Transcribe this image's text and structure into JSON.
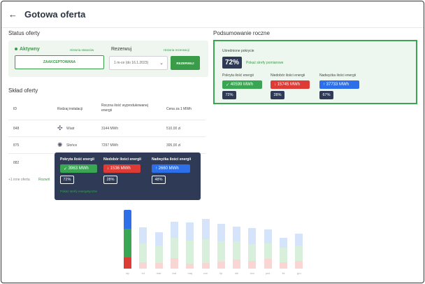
{
  "header": {
    "back_icon": "←",
    "title": "Gotowa oferta"
  },
  "status": {
    "section_title": "Status oferty",
    "active_label": "Aktywny",
    "history_status_link": "Historia statusów",
    "approved_button": "ZAAKCEPTOWANA",
    "reserve_label": "Rezerwuj",
    "history_reserve_link": "Historia rezerwacji",
    "reserve_select_value": "1 m-ce (do 16.1.2023)",
    "reserve_button": "REZERWUJ"
  },
  "composition": {
    "section_title": "Skład oferty",
    "columns": [
      "ID",
      "Rodzaj instalacji",
      "Roczna ilość wyprodukowanej energii",
      "Cena za 1 MWh"
    ],
    "rows": [
      {
        "id": "848",
        "type": "Wiatr",
        "icon": "wind-icon",
        "energy": "3144 MWh",
        "price": "510,00 zł"
      },
      {
        "id": "875",
        "type": "Słońce",
        "icon": "sun-icon",
        "energy": "7297 MWh",
        "price": "395,00 zł"
      },
      {
        "id": "882",
        "type": "",
        "icon": "",
        "energy": "",
        "price": ""
      }
    ],
    "footer_count": "+1 inne oferta",
    "footer_link": "Rozwiń"
  },
  "summary": {
    "section_title": "Podsumowanie roczne",
    "avg_coverage_label": "Uśrednione pokrycie",
    "avg_coverage_value": "72%",
    "zone_link": "Pokaż strefy pomiarowe",
    "covered_label": "Pokryta ilość energii",
    "covered_value": "40599 MWh",
    "covered_pct": "72%",
    "deficit_label": "Niedobór ilości energii",
    "deficit_value": "15745 MWh",
    "deficit_pct": "28%",
    "surplus_label": "Nadwyżka ilości energii",
    "surplus_value": "37733 MWh",
    "surplus_pct": "67%"
  },
  "tooltip": {
    "covered_label": "Pokryta ilość energii",
    "covered_value": "3963 MWh",
    "covered_pct": "72%",
    "deficit_label": "Niedobór ilości energii",
    "deficit_value": "1536 MWh",
    "deficit_pct": "28%",
    "surplus_label": "Nadwyżka ilości energii",
    "surplus_value": "2660 MWh",
    "surplus_pct": "48%",
    "zone_link": "Pokaż strefy energetyczne"
  },
  "chart_data": {
    "type": "bar",
    "categories": [
      "sty",
      "lut",
      "mar",
      "kwi",
      "maj",
      "cze",
      "lip",
      "sie",
      "wrz",
      "paź",
      "lis",
      "gru"
    ],
    "series": [
      {
        "name": "Pokryta ilość energii",
        "values": [
          72,
          48,
          44,
          52,
          58,
          60,
          50,
          46,
          42,
          40,
          36,
          38
        ]
      },
      {
        "name": "Niedobór ilości energii",
        "values": [
          28,
          16,
          14,
          26,
          12,
          14,
          18,
          22,
          20,
          24,
          16,
          20
        ]
      },
      {
        "name": "Nadwyżka ilości energii",
        "values": [
          48,
          40,
          34,
          40,
          46,
          50,
          44,
          38,
          40,
          34,
          26,
          30
        ]
      }
    ],
    "highlighted_category": "sty",
    "colors": {
      "covered": "#3aa552",
      "deficit": "#dd3b36",
      "surplus": "#2d6fe8"
    }
  }
}
